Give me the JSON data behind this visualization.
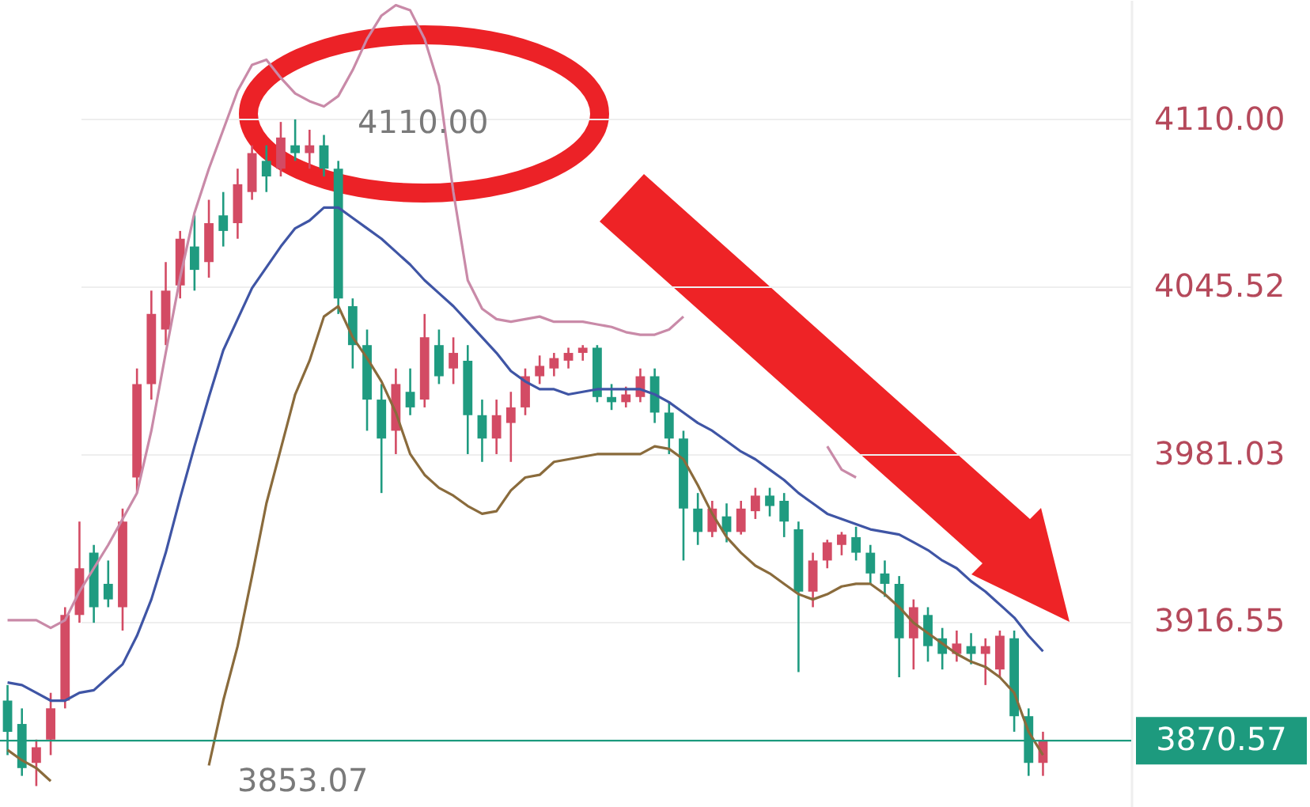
{
  "chart_data": {
    "type": "candlestick",
    "categories": [
      null,
      null,
      null,
      null,
      null,
      null,
      null,
      null,
      null,
      null,
      null,
      null,
      null,
      null,
      null,
      null,
      null,
      null,
      null,
      null,
      null,
      null,
      null,
      null,
      null,
      null,
      null,
      null,
      null,
      null,
      null,
      null,
      null,
      null,
      null,
      null,
      null,
      null,
      null,
      null,
      null,
      null,
      null,
      null,
      null,
      null,
      null,
      null,
      null,
      null,
      null,
      null,
      null,
      null,
      null,
      null,
      null,
      null,
      null,
      null,
      null,
      null,
      null,
      null,
      null,
      null,
      null,
      null,
      null,
      null,
      null,
      null,
      null
    ],
    "ohlc": [
      [
        3886,
        3892,
        3865,
        3874
      ],
      [
        3877,
        3883,
        3857,
        3860
      ],
      [
        3862,
        3871,
        3853.07,
        3868
      ],
      [
        3871,
        3889,
        3865,
        3883
      ],
      [
        3886,
        3922,
        3883,
        3919
      ],
      [
        3919,
        3955,
        3916,
        3937
      ],
      [
        3943,
        3946,
        3916,
        3922
      ],
      [
        3931,
        3940,
        3922,
        3925
      ],
      [
        3922,
        3960,
        3913,
        3955
      ],
      [
        3972,
        4014,
        3966,
        4008
      ],
      [
        4008,
        4044,
        4002,
        4035
      ],
      [
        4029,
        4055,
        4023,
        4044
      ],
      [
        4046,
        4067,
        4041,
        4064
      ],
      [
        4061,
        4073,
        4044,
        4052
      ],
      [
        4055,
        4079,
        4049,
        4070
      ],
      [
        4073,
        4082,
        4061,
        4067
      ],
      [
        4070,
        4091,
        4064,
        4085
      ],
      [
        4082,
        4100,
        4079,
        4097
      ],
      [
        4094,
        4100,
        4082,
        4088
      ],
      [
        4091,
        4109,
        4088,
        4103
      ],
      [
        4100,
        4110,
        4094,
        4097
      ],
      [
        4097,
        4106,
        4091,
        4100
      ],
      [
        4100,
        4104,
        4088,
        4091
      ],
      [
        4091,
        4094,
        4035,
        4041
      ],
      [
        4038,
        4041,
        4014,
        4023
      ],
      [
        4023,
        4029,
        3990,
        4002
      ],
      [
        4002,
        4008,
        3966,
        3987
      ],
      [
        3990,
        4014,
        3981,
        4008
      ],
      [
        4005,
        4014,
        3996,
        3999
      ],
      [
        4002,
        4035,
        3999,
        4026
      ],
      [
        4023,
        4029,
        4008,
        4011
      ],
      [
        4014,
        4026,
        4008,
        4020
      ],
      [
        4017,
        4023,
        3981,
        3996
      ],
      [
        3996,
        4002,
        3978,
        3987
      ],
      [
        3987,
        4002,
        3981,
        3996
      ],
      [
        3993,
        4005,
        3978,
        3999
      ],
      [
        3999,
        4014,
        3996,
        4011
      ],
      [
        4011,
        4019,
        4008,
        4015
      ],
      [
        4014,
        4020,
        4011,
        4018
      ],
      [
        4017,
        4022,
        4014,
        4020
      ],
      [
        4020,
        4023,
        4017,
        4022
      ],
      [
        4022,
        4023,
        4001,
        4003
      ],
      [
        4003,
        4008,
        3998,
        4001
      ],
      [
        4001,
        4007,
        3999,
        4004
      ],
      [
        4003,
        4014,
        4001,
        4011
      ],
      [
        4011,
        4014,
        3993,
        3997
      ],
      [
        3997,
        4001,
        3981,
        3987
      ],
      [
        3987,
        3990,
        3940,
        3960
      ],
      [
        3960,
        3966,
        3946,
        3951
      ],
      [
        3951,
        3963,
        3949,
        3960
      ],
      [
        3957,
        3962,
        3947,
        3951
      ],
      [
        3951,
        3963,
        3950,
        3960
      ],
      [
        3959,
        3968,
        3956,
        3965
      ],
      [
        3965,
        3968,
        3957,
        3961
      ],
      [
        3963,
        3966,
        3949,
        3955
      ],
      [
        3952,
        3955,
        3897,
        3928
      ],
      [
        3928,
        3943,
        3922,
        3940
      ],
      [
        3940,
        3948,
        3937,
        3947
      ],
      [
        3946,
        3951,
        3942,
        3950
      ],
      [
        3949,
        3953,
        3940,
        3943
      ],
      [
        3943,
        3946,
        3931,
        3935
      ],
      [
        3935,
        3940,
        3926,
        3931
      ],
      [
        3931,
        3934,
        3895,
        3910
      ],
      [
        3910,
        3925,
        3898,
        3922
      ],
      [
        3919,
        3922,
        3901,
        3907
      ],
      [
        3910,
        3914,
        3898,
        3904
      ],
      [
        3904,
        3913,
        3901,
        3908
      ],
      [
        3907,
        3912,
        3900,
        3904
      ],
      [
        3904,
        3910,
        3892,
        3907
      ],
      [
        3898,
        3913,
        3895,
        3911
      ],
      [
        3910,
        3913,
        3874,
        3880
      ],
      [
        3880,
        3883,
        3857,
        3862
      ],
      [
        3862,
        3874,
        3857,
        3870.57
      ]
    ],
    "series": [
      {
        "type": "line",
        "color": "#c98aa8",
        "values": [
          3917,
          3917,
          3917,
          3914,
          3917,
          3928,
          3937,
          3946,
          3956,
          3966,
          3990,
          4020,
          4049,
          4074,
          4091,
          4106,
          4121,
          4131,
          4133,
          4126,
          4120,
          4117,
          4115,
          4119,
          4129,
          4141,
          4150,
          4154,
          4152,
          4141,
          4123,
          4082,
          4048,
          4037,
          4033,
          4032,
          4033,
          4034,
          4032,
          4032,
          4032,
          4031,
          4030,
          4028,
          4027,
          4027,
          4029,
          4034,
          null,
          null,
          null,
          null,
          null,
          null,
          null,
          null,
          null,
          3984,
          3975,
          3972,
          null,
          null,
          null,
          null,
          null,
          null,
          null,
          null,
          null,
          null,
          null,
          null,
          null
        ]
      },
      {
        "type": "line",
        "color": "#3f55a5",
        "values": [
          3893,
          3892,
          3889,
          3886,
          3886,
          3889,
          3890,
          3895,
          3900,
          3911,
          3925,
          3943,
          3964,
          3984,
          4003,
          4021,
          4033,
          4045,
          4053,
          4061,
          4068,
          4071,
          4076,
          4076,
          4072,
          4068,
          4064,
          4059,
          4054,
          4048,
          4043,
          4038,
          4032,
          4026,
          4020,
          4013,
          4009,
          4006,
          4006,
          4004,
          4005,
          4006,
          4006,
          4006,
          4006,
          4004,
          4001,
          3997,
          3993,
          3990,
          3986,
          3982,
          3979,
          3975,
          3971,
          3966,
          3962,
          3958,
          3956,
          3954,
          3952,
          3951,
          3950,
          3947,
          3944,
          3940,
          3937,
          3932,
          3928,
          3923,
          3918,
          3911,
          3905
        ]
      },
      {
        "type": "line",
        "color": "#8a6b3c",
        "values": [
          3867,
          3863,
          3860,
          3855,
          null,
          null,
          null,
          null,
          null,
          null,
          null,
          null,
          null,
          null,
          3861,
          3886,
          3907,
          3934,
          3962,
          3983,
          4004,
          4017,
          4034,
          4038,
          4026,
          4018,
          4009,
          3997,
          3981,
          3973,
          3968,
          3965,
          3961,
          3958,
          3959,
          3967,
          3972,
          3973,
          3978,
          3979,
          3980,
          3981,
          3981,
          3981,
          3981,
          3984,
          3983,
          3979,
          3969,
          3958,
          3949,
          3943,
          3938,
          3935,
          3931,
          3927,
          3925,
          3927,
          3930,
          3931,
          3931,
          3927,
          3922,
          3916,
          3912,
          3908,
          3904,
          3901,
          3899,
          3895,
          3889,
          3874,
          3865
        ]
      }
    ],
    "ylim": [
      3845,
      4156
    ],
    "yticks": [
      {
        "value": 4110,
        "label": "4110.00"
      },
      {
        "value": 4045.52,
        "label": "4045.52"
      },
      {
        "value": 3981.03,
        "label": "3981.03"
      },
      {
        "value": 3916.55,
        "label": "3916.55"
      }
    ],
    "tick_labels": "y",
    "grid": "y",
    "ref_lines": [
      {
        "axis": "y",
        "value": 3870.57,
        "label": "3870.57",
        "color": "#1d9a7e"
      }
    ],
    "annotations": [
      "4110.00",
      "3853.07"
    ]
  }
}
